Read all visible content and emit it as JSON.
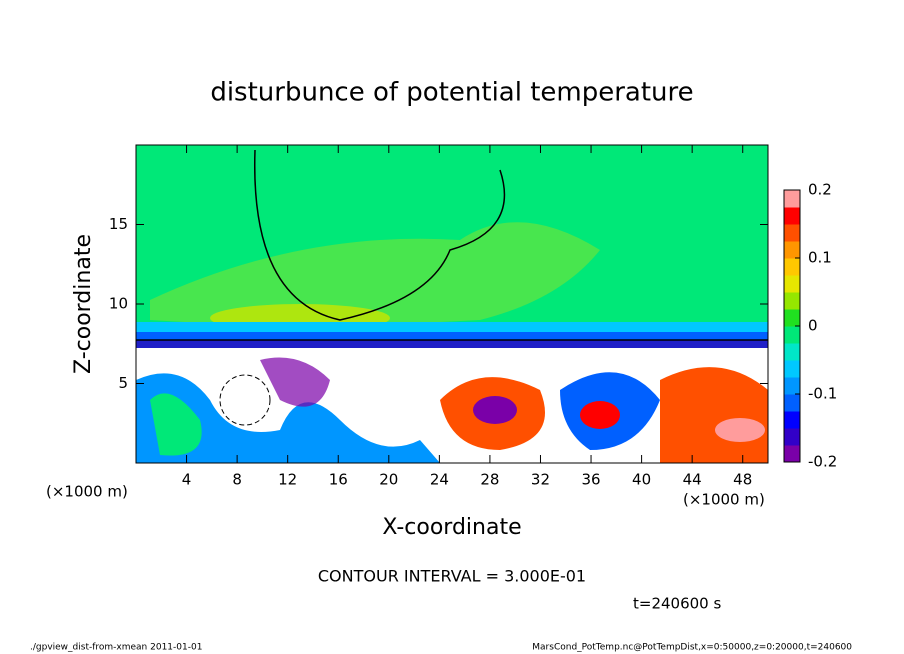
{
  "chart_data": {
    "type": "heatmap",
    "title": "disturbunce of potential temperature",
    "x_label": "X-coordinate",
    "y_label": "Z-coordinate",
    "x_unit_label": "(×1000 m)",
    "xlim": [
      0,
      50
    ],
    "xticks": [
      4,
      8,
      12,
      16,
      20,
      24,
      28,
      32,
      36,
      40,
      44,
      48
    ],
    "ylim": [
      0,
      20
    ],
    "yticks": [
      5,
      10,
      15
    ],
    "colorbar": {
      "lim": [
        -0.2,
        0.2
      ],
      "ticks": [
        0.2,
        0.1,
        0,
        -0.1,
        -0.2
      ],
      "colors": [
        "#7a00a8",
        "#3200c8",
        "#0000ff",
        "#0060ff",
        "#0096ff",
        "#00c8ff",
        "#00e6c8",
        "#00e878",
        "#20e020",
        "#96e600",
        "#e6e600",
        "#ffc800",
        "#ff9600",
        "#ff5000",
        "#ff0000",
        "#ff9c9c"
      ]
    },
    "contour_interval": "CONTOUR INTERVAL = 3.000E-01",
    "time_label": "t=240600 s"
  },
  "footer": {
    "left": "./gpview_dist-from-xmean  2011-01-01",
    "right": "MarsCond_PotTemp.nc@PotTempDist,x=0:50000,z=0:20000,t=240600"
  }
}
